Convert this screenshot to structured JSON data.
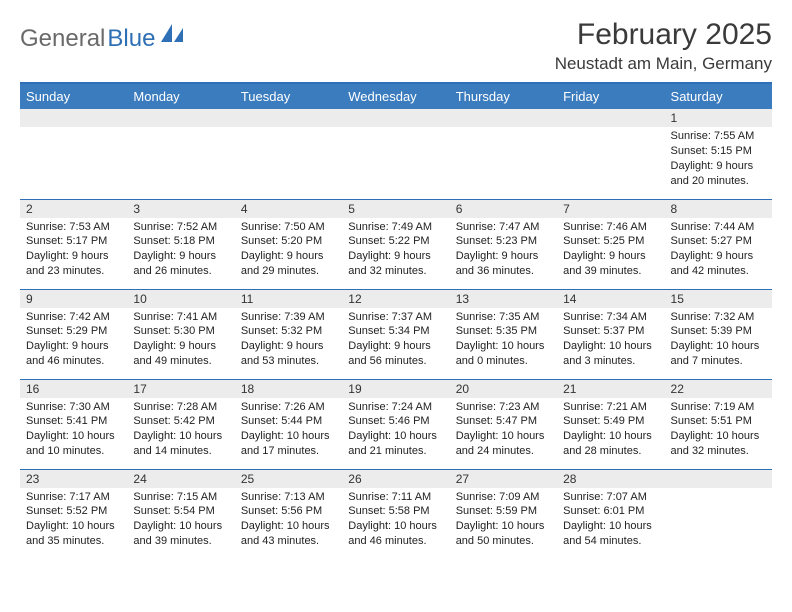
{
  "logo": {
    "text_grey": "General",
    "text_blue": "Blue"
  },
  "title": "February 2025",
  "location": "Neustadt am Main, Germany",
  "colors": {
    "header_bg": "#3b7cbf",
    "border": "#2e6fb5",
    "daynum_bg": "#ececec",
    "text": "#333333",
    "logo_grey": "#6a6a6a",
    "logo_blue": "#2e6fb5"
  },
  "day_headers": [
    "Sunday",
    "Monday",
    "Tuesday",
    "Wednesday",
    "Thursday",
    "Friday",
    "Saturday"
  ],
  "weeks": [
    [
      {
        "day": "",
        "lines": []
      },
      {
        "day": "",
        "lines": []
      },
      {
        "day": "",
        "lines": []
      },
      {
        "day": "",
        "lines": []
      },
      {
        "day": "",
        "lines": []
      },
      {
        "day": "",
        "lines": []
      },
      {
        "day": "1",
        "lines": [
          "Sunrise: 7:55 AM",
          "Sunset: 5:15 PM",
          "Daylight: 9 hours and 20 minutes."
        ]
      }
    ],
    [
      {
        "day": "2",
        "lines": [
          "Sunrise: 7:53 AM",
          "Sunset: 5:17 PM",
          "Daylight: 9 hours and 23 minutes."
        ]
      },
      {
        "day": "3",
        "lines": [
          "Sunrise: 7:52 AM",
          "Sunset: 5:18 PM",
          "Daylight: 9 hours and 26 minutes."
        ]
      },
      {
        "day": "4",
        "lines": [
          "Sunrise: 7:50 AM",
          "Sunset: 5:20 PM",
          "Daylight: 9 hours and 29 minutes."
        ]
      },
      {
        "day": "5",
        "lines": [
          "Sunrise: 7:49 AM",
          "Sunset: 5:22 PM",
          "Daylight: 9 hours and 32 minutes."
        ]
      },
      {
        "day": "6",
        "lines": [
          "Sunrise: 7:47 AM",
          "Sunset: 5:23 PM",
          "Daylight: 9 hours and 36 minutes."
        ]
      },
      {
        "day": "7",
        "lines": [
          "Sunrise: 7:46 AM",
          "Sunset: 5:25 PM",
          "Daylight: 9 hours and 39 minutes."
        ]
      },
      {
        "day": "8",
        "lines": [
          "Sunrise: 7:44 AM",
          "Sunset: 5:27 PM",
          "Daylight: 9 hours and 42 minutes."
        ]
      }
    ],
    [
      {
        "day": "9",
        "lines": [
          "Sunrise: 7:42 AM",
          "Sunset: 5:29 PM",
          "Daylight: 9 hours and 46 minutes."
        ]
      },
      {
        "day": "10",
        "lines": [
          "Sunrise: 7:41 AM",
          "Sunset: 5:30 PM",
          "Daylight: 9 hours and 49 minutes."
        ]
      },
      {
        "day": "11",
        "lines": [
          "Sunrise: 7:39 AM",
          "Sunset: 5:32 PM",
          "Daylight: 9 hours and 53 minutes."
        ]
      },
      {
        "day": "12",
        "lines": [
          "Sunrise: 7:37 AM",
          "Sunset: 5:34 PM",
          "Daylight: 9 hours and 56 minutes."
        ]
      },
      {
        "day": "13",
        "lines": [
          "Sunrise: 7:35 AM",
          "Sunset: 5:35 PM",
          "Daylight: 10 hours and 0 minutes."
        ]
      },
      {
        "day": "14",
        "lines": [
          "Sunrise: 7:34 AM",
          "Sunset: 5:37 PM",
          "Daylight: 10 hours and 3 minutes."
        ]
      },
      {
        "day": "15",
        "lines": [
          "Sunrise: 7:32 AM",
          "Sunset: 5:39 PM",
          "Daylight: 10 hours and 7 minutes."
        ]
      }
    ],
    [
      {
        "day": "16",
        "lines": [
          "Sunrise: 7:30 AM",
          "Sunset: 5:41 PM",
          "Daylight: 10 hours and 10 minutes."
        ]
      },
      {
        "day": "17",
        "lines": [
          "Sunrise: 7:28 AM",
          "Sunset: 5:42 PM",
          "Daylight: 10 hours and 14 minutes."
        ]
      },
      {
        "day": "18",
        "lines": [
          "Sunrise: 7:26 AM",
          "Sunset: 5:44 PM",
          "Daylight: 10 hours and 17 minutes."
        ]
      },
      {
        "day": "19",
        "lines": [
          "Sunrise: 7:24 AM",
          "Sunset: 5:46 PM",
          "Daylight: 10 hours and 21 minutes."
        ]
      },
      {
        "day": "20",
        "lines": [
          "Sunrise: 7:23 AM",
          "Sunset: 5:47 PM",
          "Daylight: 10 hours and 24 minutes."
        ]
      },
      {
        "day": "21",
        "lines": [
          "Sunrise: 7:21 AM",
          "Sunset: 5:49 PM",
          "Daylight: 10 hours and 28 minutes."
        ]
      },
      {
        "day": "22",
        "lines": [
          "Sunrise: 7:19 AM",
          "Sunset: 5:51 PM",
          "Daylight: 10 hours and 32 minutes."
        ]
      }
    ],
    [
      {
        "day": "23",
        "lines": [
          "Sunrise: 7:17 AM",
          "Sunset: 5:52 PM",
          "Daylight: 10 hours and 35 minutes."
        ]
      },
      {
        "day": "24",
        "lines": [
          "Sunrise: 7:15 AM",
          "Sunset: 5:54 PM",
          "Daylight: 10 hours and 39 minutes."
        ]
      },
      {
        "day": "25",
        "lines": [
          "Sunrise: 7:13 AM",
          "Sunset: 5:56 PM",
          "Daylight: 10 hours and 43 minutes."
        ]
      },
      {
        "day": "26",
        "lines": [
          "Sunrise: 7:11 AM",
          "Sunset: 5:58 PM",
          "Daylight: 10 hours and 46 minutes."
        ]
      },
      {
        "day": "27",
        "lines": [
          "Sunrise: 7:09 AM",
          "Sunset: 5:59 PM",
          "Daylight: 10 hours and 50 minutes."
        ]
      },
      {
        "day": "28",
        "lines": [
          "Sunrise: 7:07 AM",
          "Sunset: 6:01 PM",
          "Daylight: 10 hours and 54 minutes."
        ]
      },
      {
        "day": "",
        "lines": []
      }
    ]
  ]
}
